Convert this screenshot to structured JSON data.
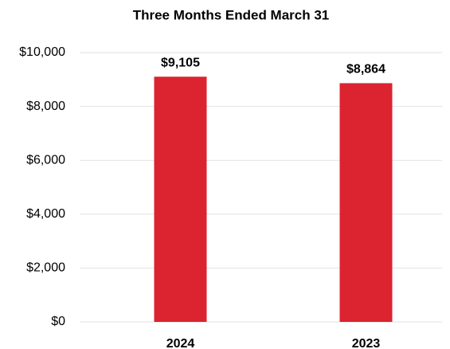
{
  "chart_data": {
    "type": "bar",
    "title": "Three Months Ended March 31",
    "categories": [
      "2024",
      "2023"
    ],
    "values": [
      9105,
      8864
    ],
    "value_labels": [
      "$9,105",
      "$8,864"
    ],
    "color": "#dc2330",
    "ylim": [
      0,
      10000
    ],
    "yticks": [
      {
        "value": 0,
        "label": "$0"
      },
      {
        "value": 2000,
        "label": "$2,000"
      },
      {
        "value": 4000,
        "label": "$4,000"
      },
      {
        "value": 6000,
        "label": "$6,000"
      },
      {
        "value": 8000,
        "label": "$8,000"
      },
      {
        "value": 10000,
        "label": "$10,000"
      }
    ],
    "grid": true
  }
}
